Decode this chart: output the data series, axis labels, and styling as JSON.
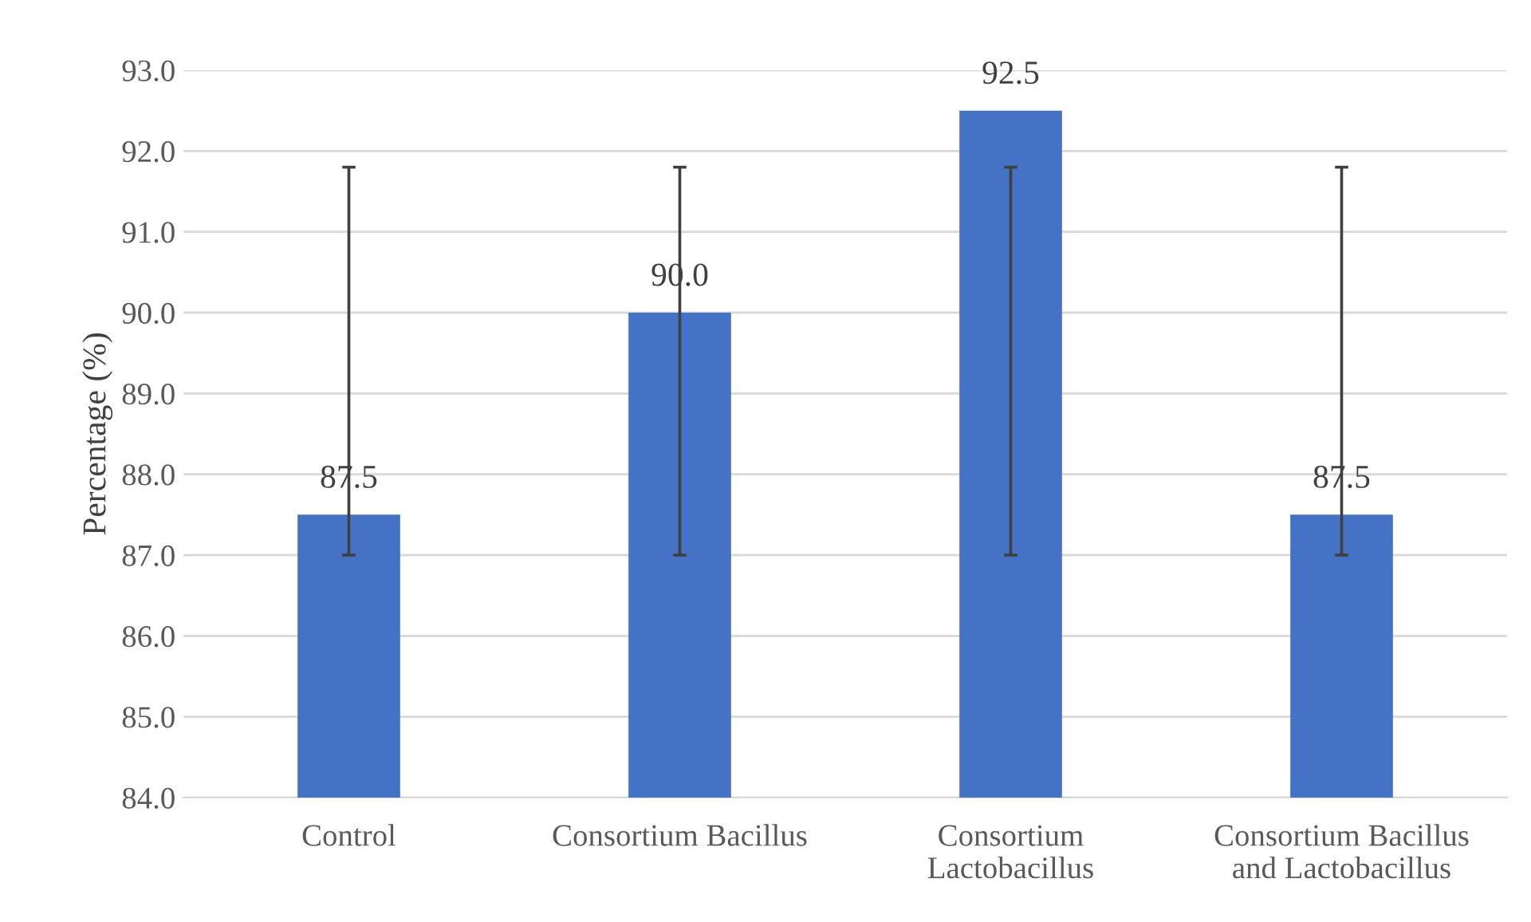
{
  "chart_data": {
    "type": "bar",
    "ylabel": "Percentage (%)",
    "categories": [
      "Control",
      "Consortium Bacillus",
      "Consortium\nLactobacillus",
      "Consortium Bacillus\nand Lactobacillus"
    ],
    "values": [
      87.5,
      90.0,
      92.5,
      87.5
    ],
    "color": "#4472c4",
    "value_labels": [
      "87.5",
      "90.0",
      "92.5",
      "87.5"
    ],
    "errors": [
      [
        87.0,
        91.8
      ],
      [
        87.0,
        91.8
      ],
      [
        87.0,
        91.8
      ],
      [
        87.0,
        91.8
      ]
    ],
    "ylim": [
      84.0,
      93.0
    ],
    "yticks": [
      {
        "value": 84.0,
        "label": "84.0"
      },
      {
        "value": 85.0,
        "label": "85.0"
      },
      {
        "value": 86.0,
        "label": "86.0"
      },
      {
        "value": 87.0,
        "label": "87.0"
      },
      {
        "value": 88.0,
        "label": "88.0"
      },
      {
        "value": 89.0,
        "label": "89.0"
      },
      {
        "value": 90.0,
        "label": "90.0"
      },
      {
        "value": 91.0,
        "label": "91.0"
      },
      {
        "value": 92.0,
        "label": "92.0"
      },
      {
        "value": 93.0,
        "label": "93.0"
      }
    ],
    "grid": "y",
    "legend": false
  }
}
